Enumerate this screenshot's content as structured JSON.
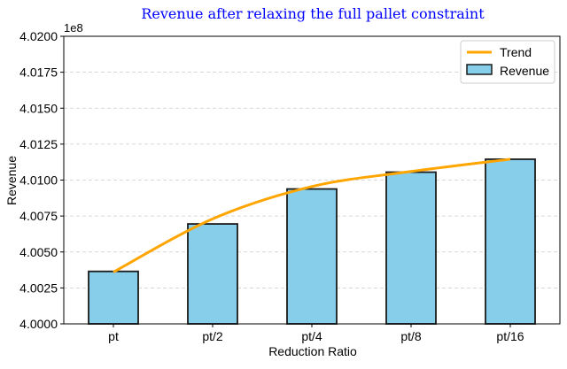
{
  "chart_data": {
    "type": "bar",
    "title": "Revenue after relaxing the full pallet constraint",
    "xlabel": "Reduction Ratio",
    "ylabel": "Revenue",
    "y_offset_label": "1e8",
    "y_scale": 100000000,
    "categories": [
      "pt",
      "pt/2",
      "pt/4",
      "pt/8",
      "pt/16"
    ],
    "ylim": [
      4.0,
      4.02
    ],
    "yticks": [
      "4.0000",
      "4.0025",
      "4.0050",
      "4.0075",
      "4.0100",
      "4.0125",
      "4.0150",
      "4.0175",
      "4.0200"
    ],
    "grid": true,
    "legend_position": "top-right",
    "series": [
      {
        "name": "Revenue",
        "type": "bar",
        "color": "#87ceeb",
        "values": [
          4.00365,
          4.00695,
          4.00938,
          4.01055,
          4.01145
        ]
      },
      {
        "name": "Trend",
        "type": "line",
        "color": "#ffa500",
        "values": [
          4.0036,
          4.0073,
          4.00955,
          4.0106,
          4.01145
        ]
      }
    ]
  }
}
